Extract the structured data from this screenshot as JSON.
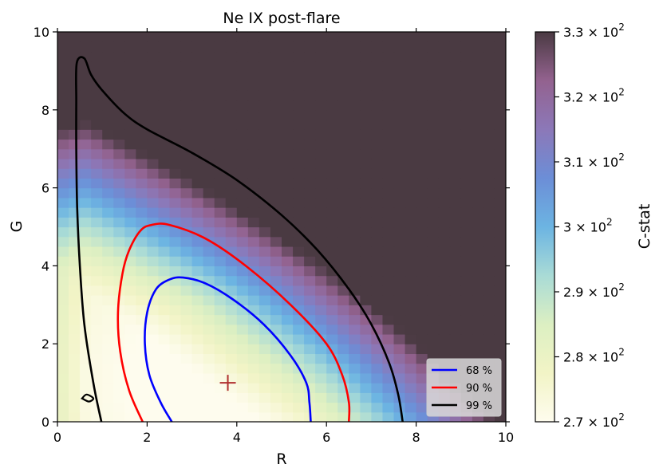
{
  "chart_data": {
    "type": "heatmap",
    "title": "Ne IX post-flare",
    "xlabel": "R",
    "ylabel": "G",
    "xlim": [
      0,
      10
    ],
    "ylim": [
      0,
      10
    ],
    "x_ticks": [
      "0",
      "2",
      "4",
      "6",
      "8",
      "10"
    ],
    "y_ticks": [
      "0",
      "2",
      "4",
      "6",
      "8",
      "10"
    ],
    "colorbar": {
      "label": "C-stat",
      "range": [
        270,
        330
      ],
      "ticks": [
        {
          "value": 270,
          "mantissa": "2.7",
          "base": "10",
          "exp": "2"
        },
        {
          "value": 280,
          "mantissa": "2.8",
          "base": "10",
          "exp": "2"
        },
        {
          "value": 290,
          "mantissa": "2.9",
          "base": "10",
          "exp": "2"
        },
        {
          "value": 300,
          "mantissa": "3",
          "base": "10",
          "exp": "2"
        },
        {
          "value": 310,
          "mantissa": "3.1",
          "base": "10",
          "exp": "2"
        },
        {
          "value": 320,
          "mantissa": "3.2",
          "base": "10",
          "exp": "2"
        },
        {
          "value": 330,
          "mantissa": "3.3",
          "base": "10",
          "exp": "2"
        }
      ],
      "colors": [
        "#fefcee",
        "#f2f4c6",
        "#dcefc2",
        "#a9dbd6",
        "#6cb4e2",
        "#6c8ed7",
        "#8c78b8",
        "#93628f",
        "#4a3a42"
      ]
    },
    "best_fit": {
      "x": 3.8,
      "y": 1.0,
      "color": "#b03030"
    },
    "contours": [
      {
        "name": "68 %",
        "color": "#0000ff",
        "points": [
          [
            2.55,
            0
          ],
          [
            2.3,
            0.5
          ],
          [
            2.05,
            1.2
          ],
          [
            1.95,
            2.0
          ],
          [
            2.0,
            2.8
          ],
          [
            2.2,
            3.4
          ],
          [
            2.5,
            3.65
          ],
          [
            2.8,
            3.7
          ],
          [
            3.3,
            3.55
          ],
          [
            3.9,
            3.15
          ],
          [
            4.6,
            2.5
          ],
          [
            5.2,
            1.7
          ],
          [
            5.55,
            1.0
          ],
          [
            5.62,
            0.5
          ],
          [
            5.65,
            0
          ]
        ]
      },
      {
        "name": "90 %",
        "color": "#ff0000",
        "points": [
          [
            1.9,
            0
          ],
          [
            1.6,
            0.8
          ],
          [
            1.4,
            1.8
          ],
          [
            1.35,
            2.8
          ],
          [
            1.45,
            3.8
          ],
          [
            1.6,
            4.4
          ],
          [
            1.85,
            4.9
          ],
          [
            2.1,
            5.05
          ],
          [
            2.5,
            5.05
          ],
          [
            3.3,
            4.7
          ],
          [
            4.2,
            4.0
          ],
          [
            5.2,
            3.0
          ],
          [
            6.0,
            2.0
          ],
          [
            6.35,
            1.2
          ],
          [
            6.5,
            0.5
          ],
          [
            6.5,
            0
          ]
        ]
      },
      {
        "name": "99 %",
        "color": "#000000",
        "points": [
          [
            0.98,
            0
          ],
          [
            0.8,
            1.0
          ],
          [
            0.6,
            2.5
          ],
          [
            0.5,
            4.0
          ],
          [
            0.44,
            5.5
          ],
          [
            0.42,
            7.0
          ],
          [
            0.42,
            8.2
          ],
          [
            0.43,
            9.2
          ],
          [
            0.6,
            9.32
          ],
          [
            0.75,
            8.9
          ],
          [
            1.0,
            8.5
          ],
          [
            1.5,
            7.9
          ],
          [
            2.0,
            7.5
          ],
          [
            3.0,
            6.9
          ],
          [
            4.0,
            6.2
          ],
          [
            5.0,
            5.3
          ],
          [
            5.8,
            4.4
          ],
          [
            6.5,
            3.4
          ],
          [
            7.0,
            2.5
          ],
          [
            7.4,
            1.5
          ],
          [
            7.6,
            0.7
          ],
          [
            7.7,
            0
          ]
        ]
      }
    ],
    "island": {
      "color": "#000000",
      "points": [
        [
          0.55,
          0.6
        ],
        [
          0.65,
          0.7
        ],
        [
          0.8,
          0.6
        ],
        [
          0.7,
          0.52
        ]
      ]
    },
    "legend": {
      "position": "bottom-right",
      "entries": [
        {
          "label": "68 %",
          "color": "#0000ff"
        },
        {
          "label": "90 %",
          "color": "#ff0000"
        },
        {
          "label": "99 %",
          "color": "#000000"
        }
      ]
    }
  }
}
